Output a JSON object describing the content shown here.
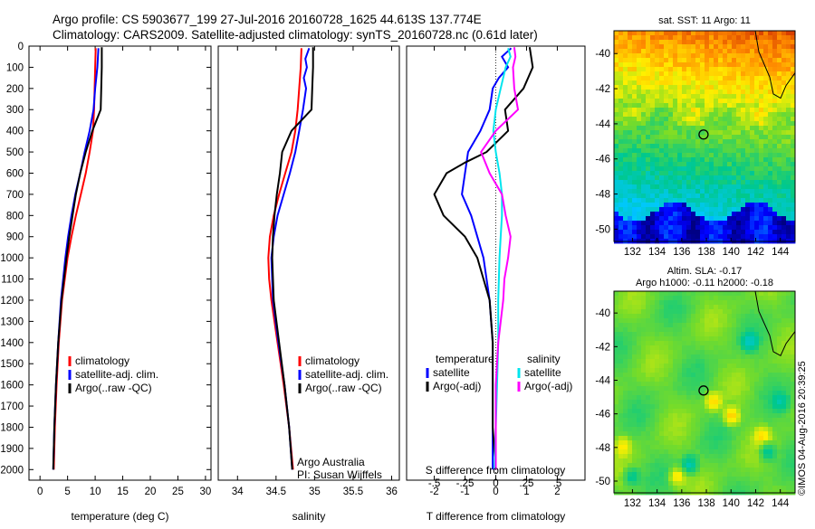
{
  "header": {
    "title_line1": "Argo profile: CS 5903677_199 27-Jul-2016 20160728_1625 44.613S 137.774E",
    "title_line2": "Climatology: CARS2009. Satellite-adjusted climatology: synTS_20160728.nc (0.61d later)"
  },
  "colors": {
    "climatology": "#ff0000",
    "satellite": "#0000ff",
    "argo": "#000000",
    "salinity_satellite": "#00e5ee",
    "salinity_argo": "#ff00ff"
  },
  "chart_data": [
    {
      "type": "line",
      "id": "temperature",
      "xlabel": "temperature (deg C)",
      "xlim": [
        -2,
        31
      ],
      "ylim": [
        0,
        2050
      ],
      "xticks": [
        0,
        5,
        10,
        15,
        20,
        25,
        30
      ],
      "yticks": [
        0,
        100,
        200,
        300,
        400,
        500,
        600,
        700,
        800,
        900,
        1000,
        1100,
        1200,
        1300,
        1400,
        1500,
        1600,
        1700,
        1800,
        1900,
        2000
      ],
      "legend": {
        "position": "lower-right",
        "entries": [
          "climatology",
          "satellite-adj. clim.",
          "Argo(..raw -QC)"
        ]
      },
      "series": [
        {
          "name": "climatology",
          "color": "#ff0000",
          "depth": [
            10,
            100,
            200,
            300,
            400,
            500,
            600,
            700,
            800,
            900,
            1000,
            1200,
            1400,
            1600,
            1800,
            2000
          ],
          "values": [
            10.1,
            10.0,
            9.9,
            9.8,
            9.6,
            9.0,
            8.3,
            7.4,
            6.5,
            5.7,
            5.0,
            4.0,
            3.4,
            3.0,
            2.7,
            2.5
          ]
        },
        {
          "name": "satellite-adj. clim.",
          "color": "#0000ff",
          "depth": [
            10,
            100,
            200,
            300,
            400,
            500,
            600,
            700,
            800,
            900,
            1000,
            1200,
            1400,
            1600,
            1800,
            2000
          ],
          "values": [
            10.6,
            10.4,
            10.0,
            9.7,
            9.0,
            8.1,
            7.3,
            6.4,
            5.7,
            5.1,
            4.6,
            3.8,
            3.3,
            2.9,
            2.6,
            2.4
          ]
        },
        {
          "name": "Argo(..raw -QC)",
          "color": "#000000",
          "depth": [
            5,
            100,
            200,
            300,
            400,
            500,
            600,
            700,
            800,
            900,
            1000,
            1200,
            1400,
            1600,
            1800,
            2000
          ],
          "values": [
            11.2,
            11.2,
            11.1,
            11.0,
            9.5,
            8.3,
            7.3,
            6.5,
            5.9,
            5.3,
            4.8,
            3.9,
            3.3,
            2.9,
            2.6,
            2.4
          ]
        }
      ]
    },
    {
      "type": "line",
      "id": "salinity",
      "xlabel": "salinity",
      "xlim": [
        33.75,
        36.1
      ],
      "ylim": [
        0,
        2050
      ],
      "xticks": [
        34,
        34.5,
        35,
        35.5,
        36
      ],
      "legend": {
        "position": "lower-right",
        "entries": [
          "climatology",
          "satellite-adj. clim.",
          "Argo(..raw -QC)"
        ]
      },
      "annotation": [
        "Argo Australia",
        "PI: Susan Wijffels"
      ],
      "series": [
        {
          "name": "climatology",
          "color": "#ff0000",
          "depth": [
            10,
            100,
            200,
            300,
            400,
            500,
            600,
            700,
            800,
            900,
            1000,
            1100,
            1200,
            1400,
            1600,
            1800,
            2000
          ],
          "values": [
            34.83,
            34.82,
            34.8,
            34.78,
            34.75,
            34.7,
            34.62,
            34.54,
            34.47,
            34.42,
            34.4,
            34.41,
            34.44,
            34.52,
            34.6,
            34.67,
            34.72
          ]
        },
        {
          "name": "satellite-adj. clim.",
          "color": "#0000ff",
          "depth": [
            10,
            60,
            100,
            150,
            200,
            300,
            400,
            500,
            600,
            700,
            800,
            900,
            1000,
            1200,
            1400,
            1600,
            1800,
            2000
          ],
          "values": [
            34.93,
            34.88,
            34.9,
            34.86,
            34.89,
            34.85,
            34.8,
            34.75,
            34.68,
            34.6,
            34.52,
            34.47,
            34.44,
            34.46,
            34.53,
            34.61,
            34.67,
            34.71
          ]
        },
        {
          "name": "Argo(..raw -QC)",
          "color": "#000000",
          "depth": [
            5,
            100,
            200,
            300,
            400,
            500,
            600,
            700,
            800,
            900,
            1000,
            1200,
            1400,
            1600,
            1800,
            2000
          ],
          "values": [
            34.98,
            34.98,
            34.97,
            34.96,
            34.7,
            34.58,
            34.55,
            34.51,
            34.48,
            34.46,
            34.45,
            34.47,
            34.54,
            34.61,
            34.67,
            34.71
          ]
        }
      ]
    },
    {
      "type": "line",
      "id": "difference",
      "xlabel": "T difference from climatology",
      "x2label": "S difference from climatology",
      "xlim": [
        -2.9,
        2.9
      ],
      "x2lim": [
        -0.725,
        0.725
      ],
      "ylim": [
        0,
        2050
      ],
      "xticks": [
        -2,
        -1,
        0,
        1,
        2
      ],
      "x2ticks": [
        -0.5,
        -0.25,
        0,
        0.25,
        0.5
      ],
      "legend": {
        "position": "lower-center",
        "groups": [
          {
            "header": "temperature",
            "entries": [
              "satellite",
              "Argo(-adj)"
            ]
          },
          {
            "header": "salinity",
            "entries": [
              "satellite",
              "Argo(-adj)"
            ]
          }
        ]
      },
      "series": [
        {
          "name": "satellite",
          "group": "temperature",
          "color": "#0000ff",
          "depth": [
            10,
            50,
            100,
            150,
            200,
            300,
            400,
            500,
            600,
            700,
            800,
            900,
            1000,
            1200,
            1400,
            1600,
            1800,
            2000
          ],
          "values": [
            0.5,
            0.2,
            0.4,
            0.1,
            -0.1,
            -0.2,
            -0.5,
            -0.9,
            -1.0,
            -1.1,
            -0.8,
            -0.6,
            -0.4,
            -0.2,
            -0.1,
            -0.1,
            -0.1,
            -0.1
          ]
        },
        {
          "name": "Argo(-adj)",
          "group": "temperature",
          "color": "#000000",
          "depth": [
            5,
            100,
            200,
            300,
            400,
            500,
            550,
            600,
            700,
            800,
            900,
            1000,
            1200,
            1400,
            1600,
            1800,
            2000
          ],
          "values": [
            1.1,
            1.2,
            0.9,
            0.3,
            0.4,
            -0.3,
            -1.0,
            -1.6,
            -2.0,
            -1.7,
            -1.0,
            -0.6,
            -0.2,
            -0.1,
            -0.1,
            -0.1,
            0.0
          ]
        },
        {
          "name": "satellite",
          "group": "salinity",
          "color": "#00e5ee",
          "depth": [
            10,
            50,
            100,
            200,
            300,
            400,
            500,
            600,
            700,
            800,
            900,
            1000,
            1200,
            1400,
            1600,
            1800,
            2000
          ],
          "values": [
            0.1,
            0.12,
            0.08,
            0.04,
            0.0,
            -0.02,
            0.0,
            0.03,
            0.05,
            0.05,
            0.04,
            0.03,
            0.02,
            0.02,
            0.01,
            0.0,
            -0.01
          ]
        },
        {
          "name": "Argo(-adj)",
          "group": "salinity",
          "color": "#ff00ff",
          "depth": [
            5,
            50,
            100,
            200,
            300,
            400,
            500,
            600,
            700,
            800,
            900,
            1000,
            1100,
            1200,
            1400,
            1600,
            1800,
            2000
          ],
          "values": [
            0.15,
            0.16,
            0.14,
            0.15,
            0.18,
            0.0,
            -0.12,
            -0.05,
            0.05,
            0.08,
            0.12,
            0.1,
            0.07,
            0.06,
            0.02,
            0.0,
            0.0,
            0.0
          ]
        }
      ]
    },
    {
      "type": "heatmap",
      "id": "sst_map",
      "title": "sat. SST: 11  Argo: 11",
      "xlim": [
        130.5,
        145.2
      ],
      "ylim": [
        -50.7,
        -38.7
      ],
      "xticks": [
        132,
        134,
        136,
        138,
        140,
        142,
        144
      ],
      "yticks": [
        -40,
        -42,
        -44,
        -46,
        -48,
        -50
      ],
      "marker": {
        "lon": 137.77,
        "lat": -44.61
      }
    },
    {
      "type": "heatmap",
      "id": "sla_map",
      "title_lines": [
        "Altim. SLA: -0.17",
        "Argo h1000: -0.11  h2000: -0.18"
      ],
      "xlim": [
        130.5,
        145.2
      ],
      "ylim": [
        -50.7,
        -38.7
      ],
      "xticks": [
        132,
        134,
        136,
        138,
        140,
        142,
        144
      ],
      "yticks": [
        -40,
        -42,
        -44,
        -46,
        -48,
        -50
      ],
      "marker": {
        "lon": 137.77,
        "lat": -44.61
      }
    }
  ],
  "footer": {
    "credit": "©IMOS 04-Aug-2016 20:39:25"
  }
}
